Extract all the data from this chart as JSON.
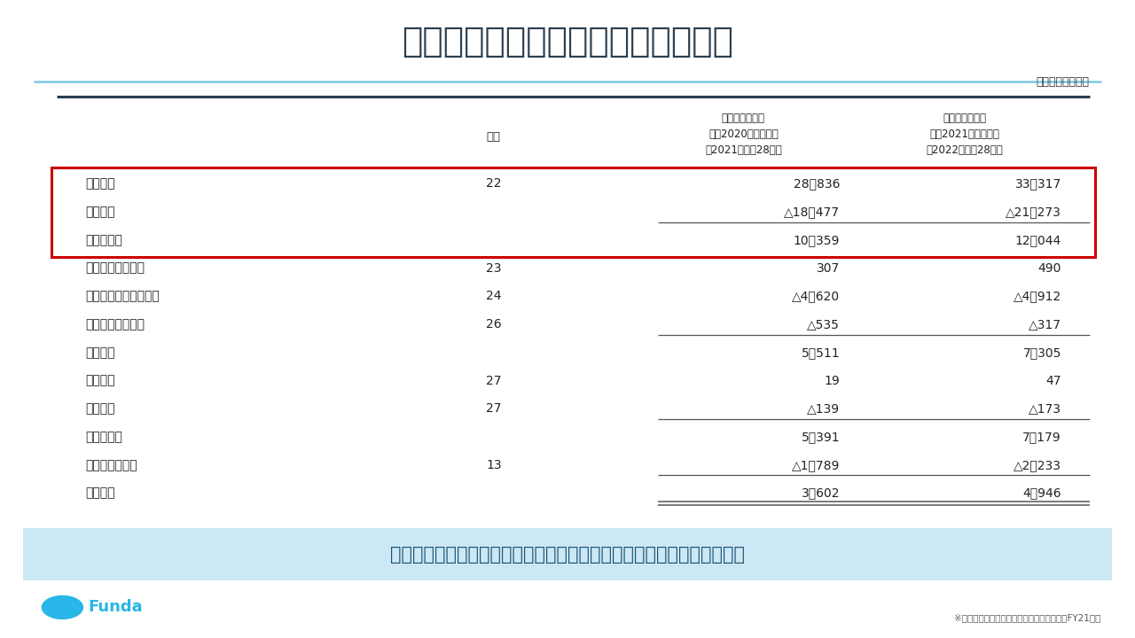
{
  "title": "指標の調べ方：粗利（売上総利益）",
  "title_color": "#2c3e50",
  "bg_color": "#ffffff",
  "header_unit": "（単位：百万円）",
  "col_headers": [
    "注記",
    "前連結会計年度\n（自2020年３月１日\n至2021年２月28日）",
    "当連結会計年度\n（自2021年３月１日\n至2022年２月28日）"
  ],
  "rows": [
    {
      "label": "売上収益",
      "note": "22",
      "prev": "28，836",
      "curr": "33，317",
      "highlight": true,
      "line_below": false,
      "double_line": false
    },
    {
      "label": "売上原価",
      "note": "",
      "prev": "△18，477",
      "curr": "△21，273",
      "highlight": true,
      "line_below": true,
      "double_line": false
    },
    {
      "label": "売上総利益",
      "note": "",
      "prev": "10，359",
      "curr": "12，044",
      "highlight": true,
      "line_below": false,
      "double_line": false
    },
    {
      "label": "その他の営業収益",
      "note": "23",
      "prev": "307",
      "curr": "490",
      "highlight": false,
      "line_below": false,
      "double_line": false
    },
    {
      "label": "販売費及び一般管理費",
      "note": "24",
      "prev": "△4，620",
      "curr": "△4，912",
      "highlight": false,
      "line_below": false,
      "double_line": false
    },
    {
      "label": "その他の営業費用",
      "note": "26",
      "prev": "△535",
      "curr": "△317",
      "highlight": false,
      "line_below": true,
      "double_line": false
    },
    {
      "label": "営業利益",
      "note": "",
      "prev": "5，511",
      "curr": "7，305",
      "highlight": false,
      "line_below": false,
      "double_line": false
    },
    {
      "label": "金融収益",
      "note": "27",
      "prev": "19",
      "curr": "47",
      "highlight": false,
      "line_below": false,
      "double_line": false
    },
    {
      "label": "金融費用",
      "note": "27",
      "prev": "△139",
      "curr": "△173",
      "highlight": false,
      "line_below": true,
      "double_line": false
    },
    {
      "label": "税引前利益",
      "note": "",
      "prev": "5，391",
      "curr": "7，179",
      "highlight": false,
      "line_below": false,
      "double_line": false
    },
    {
      "label": "法人所得税費用",
      "note": "13",
      "prev": "△1，789",
      "curr": "△2，233",
      "highlight": false,
      "line_below": true,
      "double_line": false
    },
    {
      "label": "当期利益",
      "note": "",
      "prev": "3，602",
      "curr": "4，946",
      "highlight": false,
      "line_below": true,
      "double_line": true
    }
  ],
  "highlight_border_color": "#cc0000",
  "bottom_text": "損益計算書の構成要素として、粗利（売上総利益）が記載されています",
  "bottom_bg": "#cce8f4",
  "bottom_text_color": "#1a5276",
  "footer_text": "※コメダホールディングス　有価証券報告書FY21より",
  "funda_text": "Funda",
  "funda_color": "#29b6e8",
  "header_line_color": "#2c3e50",
  "row_line_color": "#555555",
  "cyan_line_color": "#7ec8e3"
}
